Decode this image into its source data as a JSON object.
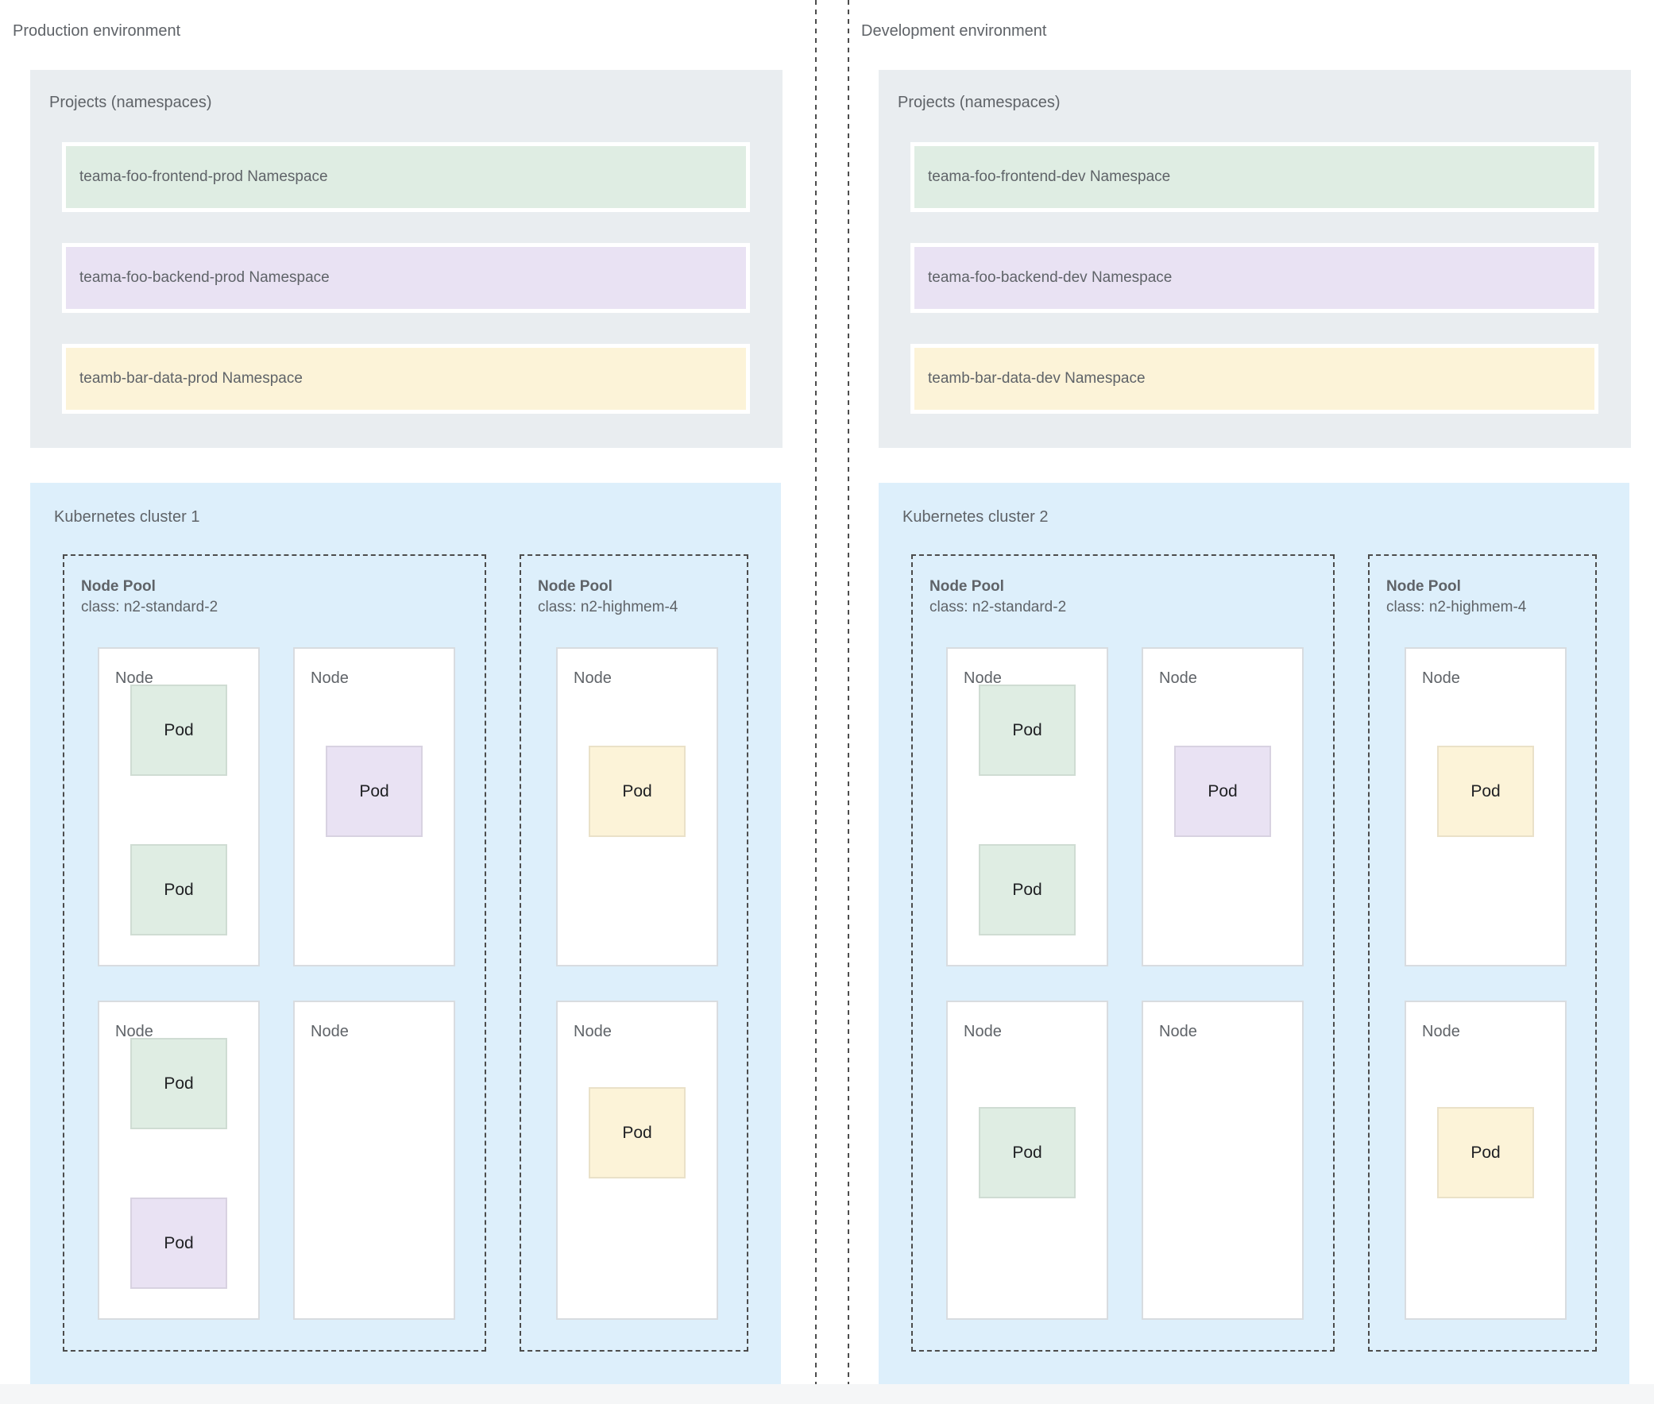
{
  "labels": {
    "node": "Node",
    "pod": "Pod"
  },
  "colors": {
    "namespace_green": "#dfede3",
    "namespace_purple": "#e9e2f3",
    "namespace_yellow": "#fcf3d8",
    "cluster_blue": "#ddeffb",
    "projects_gray": "#e9edf0",
    "node_white": "#ffffff",
    "label_gray": "#5f6368",
    "pod_text": "#202124",
    "dashed_border": "#4c4c4c"
  },
  "production": {
    "title": "Production environment",
    "projects_label": "Projects (namespaces)",
    "namespaces": [
      {
        "label": "teama-foo-frontend-prod Namespace",
        "color": "green"
      },
      {
        "label": "teama-foo-backend-prod Namespace",
        "color": "purple"
      },
      {
        "label": "teamb-bar-data-prod Namespace",
        "color": "yellow"
      }
    ],
    "cluster": {
      "title": "Kubernetes cluster 1",
      "pools": [
        {
          "name": "Node Pool",
          "class": "class: n2-standard-2"
        },
        {
          "name": "Node Pool",
          "class": "class: n2-highmem-4"
        }
      ]
    }
  },
  "development": {
    "title": "Development environment",
    "projects_label": "Projects (namespaces)",
    "namespaces": [
      {
        "label": "teama-foo-frontend-dev Namespace",
        "color": "green"
      },
      {
        "label": "teama-foo-backend-dev Namespace",
        "color": "purple"
      },
      {
        "label": "teamb-bar-data-dev Namespace",
        "color": "yellow"
      }
    ],
    "cluster": {
      "title": "Kubernetes cluster 2",
      "pools": [
        {
          "name": "Node Pool",
          "class": "class: n2-standard-2"
        },
        {
          "name": "Node Pool",
          "class": "class: n2-highmem-4"
        }
      ]
    }
  }
}
